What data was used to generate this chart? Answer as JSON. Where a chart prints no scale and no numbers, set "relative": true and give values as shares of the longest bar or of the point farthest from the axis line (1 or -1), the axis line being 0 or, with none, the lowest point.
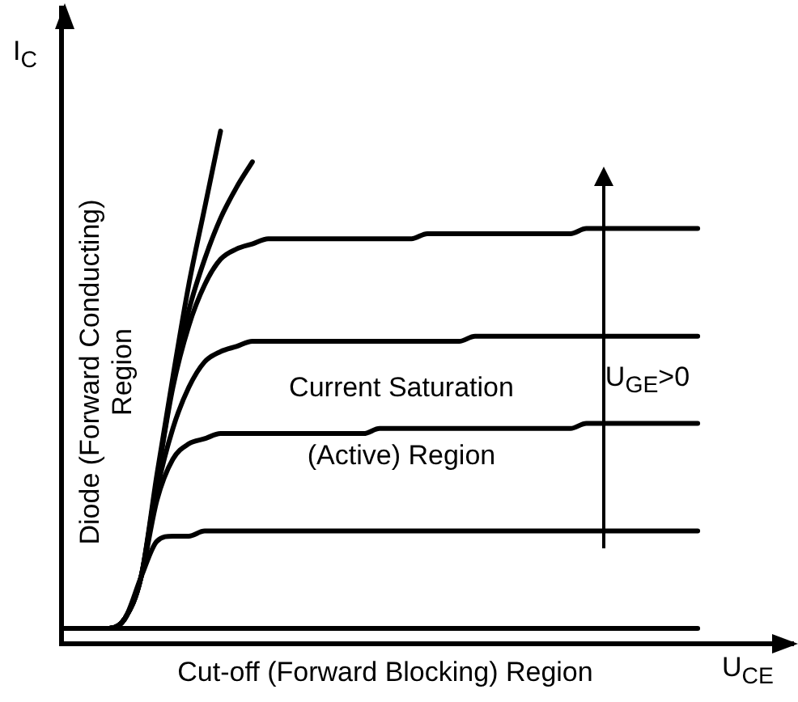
{
  "chart_data": {
    "type": "line",
    "relative": true,
    "xlabel": "U$_{CE}$",
    "ylabel": "I$_{C}$",
    "tick_labels": false,
    "grid": false,
    "legend": false,
    "marker": "none",
    "line_style": "solid",
    "annotations": [
      "Cut-off (Forward Blocking) Region",
      "Diode (Forward Conducting)\nRegion",
      "Current Saturation\n(Active) Region",
      "U$_{GE}$>0"
    ],
    "categories": [
      null,
      null,
      null,
      null,
      null,
      null,
      null,
      null,
      null,
      null,
      null,
      null,
      null,
      null,
      null,
      null,
      null,
      null,
      null,
      null,
      null,
      null,
      null,
      null,
      null,
      null,
      null,
      null,
      null,
      null,
      null,
      null,
      null,
      null,
      null,
      null,
      null,
      null,
      null,
      null,
      null,
      null,
      null,
      null,
      null,
      null,
      null
    ],
    "series": [
      {
        "color": "#000000",
        "values": [
          0.03,
          0.03,
          0.03,
          0.03,
          0.03,
          0.03,
          0.03,
          0.03,
          0.03,
          0.03,
          0.03,
          0.03,
          0.03,
          0.03,
          0.03,
          0.03,
          0.03,
          0.03,
          0.03,
          0.03,
          0.03,
          0.03,
          0.03,
          0.03,
          0.03,
          0.03,
          0.03,
          0.03,
          0.03,
          0.03,
          0.03,
          0.03,
          0.03,
          0.03,
          0.03,
          0.03,
          0.03,
          0.03,
          0.03,
          0.03,
          0.03,
          null,
          null,
          null,
          null,
          null,
          null
        ]
      },
      {
        "color": "#000000",
        "values": [
          0.03,
          0.03,
          0.03,
          0.03,
          0.05,
          0.13,
          0.2,
          0.21,
          0.21,
          0.22,
          0.22,
          0.22,
          0.22,
          0.22,
          0.22,
          0.22,
          0.22,
          0.22,
          0.22,
          0.22,
          0.22,
          0.22,
          0.22,
          0.22,
          0.22,
          0.22,
          0.22,
          0.22,
          0.22,
          0.22,
          0.22,
          0.22,
          0.22,
          0.22,
          0.22,
          0.22,
          0.22,
          0.22,
          0.22,
          0.22,
          0.22,
          null,
          null,
          null,
          null,
          null,
          null
        ]
      },
      {
        "color": "#000000",
        "values": [
          0.03,
          0.03,
          0.03,
          0.03,
          0.05,
          0.13,
          0.28,
          0.36,
          0.39,
          0.4,
          0.41,
          0.41,
          0.41,
          0.41,
          0.41,
          0.41,
          0.41,
          0.41,
          0.41,
          0.41,
          0.42,
          0.42,
          0.42,
          0.42,
          0.42,
          0.42,
          0.42,
          0.42,
          0.42,
          0.42,
          0.42,
          0.42,
          0.42,
          0.43,
          0.43,
          0.43,
          0.43,
          0.43,
          0.43,
          0.43,
          0.43,
          null,
          null,
          null,
          null,
          null,
          null
        ]
      },
      {
        "color": "#000000",
        "values": [
          0.03,
          0.03,
          0.03,
          0.03,
          0.05,
          0.13,
          0.3,
          0.42,
          0.5,
          0.55,
          0.57,
          0.58,
          0.59,
          0.59,
          0.59,
          0.59,
          0.59,
          0.59,
          0.59,
          0.59,
          0.59,
          0.59,
          0.59,
          0.59,
          0.59,
          0.59,
          0.6,
          0.6,
          0.6,
          0.6,
          0.6,
          0.6,
          0.6,
          0.6,
          0.6,
          0.6,
          0.6,
          0.6,
          0.6,
          0.6,
          0.6,
          null,
          null,
          null,
          null,
          null,
          null
        ]
      },
      {
        "color": "#000000",
        "values": [
          0.03,
          0.03,
          0.03,
          0.03,
          0.05,
          0.13,
          0.32,
          0.5,
          0.62,
          0.7,
          0.75,
          0.77,
          0.78,
          0.79,
          0.79,
          0.79,
          0.79,
          0.79,
          0.79,
          0.79,
          0.79,
          0.79,
          0.79,
          0.8,
          0.8,
          0.8,
          0.8,
          0.8,
          0.8,
          0.8,
          0.8,
          0.8,
          0.8,
          0.81,
          0.81,
          0.81,
          0.81,
          0.81,
          0.81,
          0.81,
          0.81,
          null,
          null,
          null,
          null,
          null,
          null
        ]
      },
      {
        "color": "#000000",
        "values": [
          0.03,
          0.03,
          0.03,
          0.03,
          0.05,
          0.13,
          0.33,
          0.52,
          0.7,
          0.85,
          1.0,
          null,
          null,
          null,
          null,
          null,
          null,
          null,
          null,
          null,
          null,
          null,
          null,
          null,
          null,
          null,
          null,
          null,
          null,
          null,
          null,
          null,
          null,
          null,
          null,
          null,
          null,
          null,
          null,
          null,
          null,
          null,
          null,
          null,
          null,
          null,
          null
        ]
      },
      {
        "color": "#000000",
        "values": [
          0.03,
          0.03,
          0.03,
          0.03,
          0.05,
          0.13,
          0.32,
          0.51,
          0.65,
          0.75,
          0.83,
          0.89,
          0.94,
          null,
          null,
          null,
          null,
          null,
          null,
          null,
          null,
          null,
          null,
          null,
          null,
          null,
          null,
          null,
          null,
          null,
          null,
          null,
          null,
          null,
          null,
          null,
          null,
          null,
          null,
          null,
          null,
          null,
          null,
          null,
          null,
          null,
          null
        ]
      }
    ]
  }
}
